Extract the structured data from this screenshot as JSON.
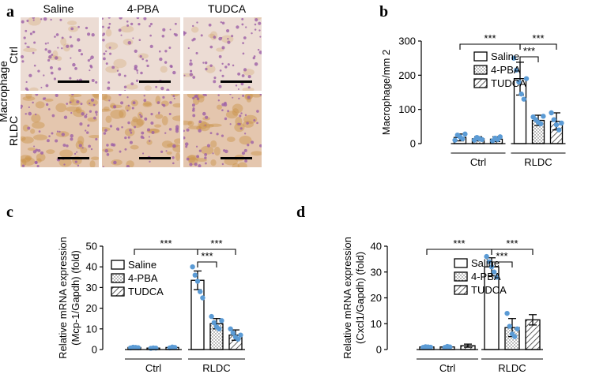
{
  "panels": [
    {
      "id": "a",
      "label": "a"
    },
    {
      "id": "b",
      "label": "b"
    },
    {
      "id": "c",
      "label": "c"
    },
    {
      "id": "d",
      "label": "d"
    }
  ],
  "histology": {
    "columns": [
      "Saline",
      "4-PBA",
      "TUDCA"
    ],
    "rows": [
      "Ctrl",
      "RLDC"
    ],
    "side_label": "Macrophage",
    "colors": {
      "ctrl_bg": "#ecdcd4",
      "rldc_bg": "#e4c6ae",
      "nuclei": "#9c5fa6",
      "brown_stain": "#c9934a"
    }
  },
  "chart_data": [
    {
      "panel": "b",
      "type": "bar",
      "ylabel": "Macrophage/mm 2",
      "ylim": [
        0,
        300
      ],
      "yticks": [
        0,
        100,
        200,
        300
      ],
      "groups": [
        "Ctrl",
        "RLDC"
      ],
      "legend": [
        "Saline",
        "4-PBA",
        "TUDCA"
      ],
      "series": [
        {
          "name": "Saline",
          "values": [
            18,
            190
          ],
          "errors": [
            10,
            48
          ],
          "points": [
            [
              10,
              25,
              20,
              14,
              28
            ],
            [
              250,
              215,
              180,
              145,
              130,
              190
            ]
          ]
        },
        {
          "name": "4-PBA",
          "values": [
            14,
            68
          ],
          "errors": [
            6,
            15
          ],
          "points": [
            [
              10,
              18,
              14,
              12
            ],
            [
              78,
              70,
              62,
              58,
              80
            ]
          ]
        },
        {
          "name": "TUDCA",
          "values": [
            13,
            65
          ],
          "errors": [
            7,
            25
          ],
          "points": [
            [
              8,
              16,
              12,
              20
            ],
            [
              90,
              70,
              55,
              40,
              60
            ]
          ]
        }
      ],
      "significance": [
        "***",
        "***",
        "***"
      ]
    },
    {
      "panel": "c",
      "type": "bar",
      "ylabel_lines": [
        "Relative mRNA expression",
        "(Mcp-1/Gapdh) (fold)"
      ],
      "ylim": [
        0,
        50
      ],
      "yticks": [
        0,
        10,
        20,
        30,
        40,
        50
      ],
      "groups": [
        "Ctrl",
        "RLDC"
      ],
      "legend": [
        "Saline",
        "4-PBA",
        "TUDCA"
      ],
      "series": [
        {
          "name": "Saline",
          "values": [
            1,
            33.5
          ],
          "errors": [
            0.3,
            4.5
          ],
          "points": [
            [
              0.8,
              1.1,
              1.0,
              0.9
            ],
            [
              40,
              36,
              33,
              28,
              25
            ]
          ]
        },
        {
          "name": "4-PBA",
          "values": [
            0.7,
            12.5
          ],
          "errors": [
            0.3,
            2.5
          ],
          "points": [
            [
              0.6,
              0.8,
              0.7
            ],
            [
              16,
              13,
              11,
              10,
              14
            ]
          ]
        },
        {
          "name": "TUDCA",
          "values": [
            1,
            7
          ],
          "errors": [
            0.4,
            2.5
          ],
          "points": [
            [
              0.8,
              1.2,
              1.0
            ],
            [
              10,
              8,
              6,
              5,
              7
            ]
          ]
        }
      ],
      "significance": [
        "***",
        "***",
        "***"
      ]
    },
    {
      "panel": "d",
      "type": "bar",
      "ylabel_lines": [
        "Relative mRNA expression",
        "(Cxcl1/Gapdh) (fold)"
      ],
      "ylim": [
        0,
        40
      ],
      "yticks": [
        0,
        10,
        20,
        30,
        40
      ],
      "groups": [
        "Ctrl",
        "RLDC"
      ],
      "legend": [
        "Saline",
        "4-PBA",
        "TUDCA"
      ],
      "series": [
        {
          "name": "Saline",
          "values": [
            1,
            32
          ],
          "errors": [
            0.3,
            3.5
          ],
          "points": [
            [
              0.8,
              1.1,
              1.0,
              0.9
            ],
            [
              36,
              34,
              32,
              30,
              28
            ]
          ]
        },
        {
          "name": "4-PBA",
          "values": [
            1,
            8.5
          ],
          "errors": [
            0.4,
            3.5
          ],
          "points": [
            [
              0.8,
              1.2,
              1.0
            ],
            [
              14,
              9,
              6,
              5,
              8
            ]
          ]
        },
        {
          "name": "TUDCA",
          "values": [
            1.5,
            11.5
          ],
          "errors": [
            0.6,
            2
          ]
        },
        {
          "name": "",
          "values": [],
          "errors": []
        }
      ],
      "significance": [
        "***",
        "***",
        "***"
      ]
    }
  ]
}
